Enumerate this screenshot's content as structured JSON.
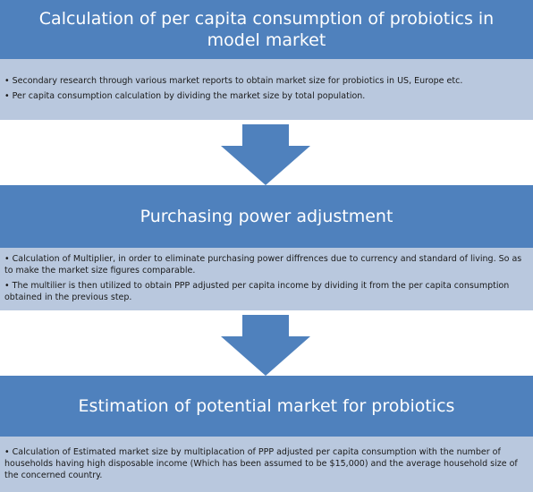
{
  "steps": [
    {
      "title": "Calculation of per capita consumption of probiotics in model market",
      "bullets": [
        "Secondary research through various market reports to obtain market size for probiotics in US, Europe etc.",
        "Per capita consumption calculation by dividing the market size by total population."
      ]
    },
    {
      "title": "Purchasing power adjustment",
      "bullets": [
        "Calculation of Multiplier, in order to eliminate purchasing power diffrences due to currency and standard of living. So as to make the market size figures comparable.",
        "The multilier is then utilized to obtain PPP adjusted per capita income by dividing it from the per capita consumption obtained in the previous step."
      ]
    },
    {
      "title": "Estimation of potential market for probiotics",
      "bullets": [
        "Calculation of Estimated market size by multiplacation of PPP adjusted per capita consumption with the number of households having high disposable income (Which has been assumed to be $15,000) and the average household size of the concerned country."
      ]
    }
  ],
  "bullet_symbol": "•",
  "colors": {
    "header_bg": "#4f81bd",
    "detail_bg": "#b9c8de",
    "arrow": "#4f81bd"
  }
}
